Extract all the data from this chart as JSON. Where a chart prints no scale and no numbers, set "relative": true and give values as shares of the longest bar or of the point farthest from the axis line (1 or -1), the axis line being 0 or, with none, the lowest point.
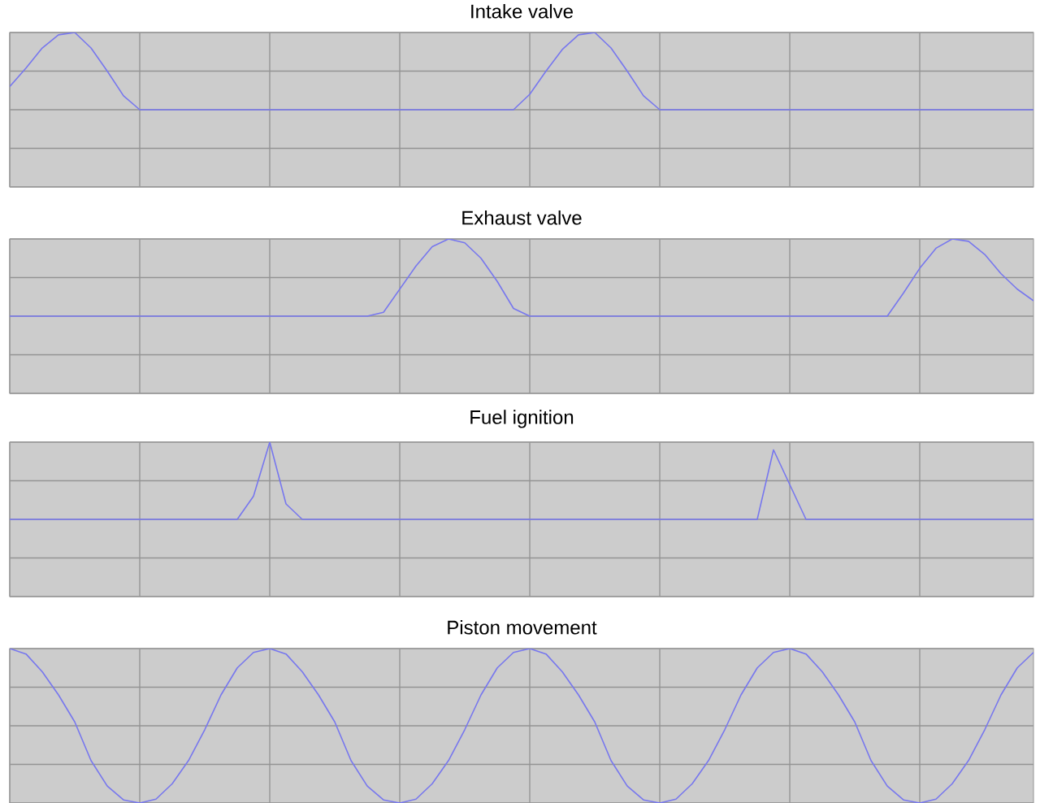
{
  "chart_data": [
    {
      "type": "line",
      "title": "Intake valve",
      "relative": true,
      "grid": true,
      "color": "#7777ee",
      "categories": [
        null,
        null,
        null,
        null,
        null,
        null,
        null,
        null,
        null,
        null,
        null,
        null,
        null,
        null,
        null,
        null,
        null,
        null,
        null,
        null,
        null,
        null,
        null,
        null,
        null,
        null,
        null,
        null,
        null,
        null,
        null,
        null,
        null,
        null,
        null,
        null,
        null,
        null,
        null,
        null,
        null,
        null,
        null,
        null,
        null,
        null,
        null,
        null,
        null,
        null,
        null,
        null,
        null,
        null,
        null,
        null,
        null,
        null,
        null,
        null,
        null,
        null,
        null,
        null
      ],
      "values": [
        0.3,
        0.54,
        0.8,
        0.97,
        1,
        0.8,
        0.5,
        0.18,
        0,
        0,
        0,
        0,
        0,
        0,
        0,
        0,
        0,
        0,
        0,
        0,
        0,
        0,
        0,
        0,
        0,
        0,
        0,
        0,
        0,
        0,
        0,
        0,
        0.2,
        0.5,
        0.78,
        0.97,
        1,
        0.8,
        0.5,
        0.18,
        0,
        0,
        0,
        0,
        0,
        0,
        0,
        0,
        0,
        0,
        0,
        0,
        0,
        0,
        0,
        0,
        0,
        0,
        0,
        0,
        0,
        0,
        0,
        0
      ]
    },
    {
      "type": "line",
      "title": "Exhaust valve",
      "relative": true,
      "grid": true,
      "color": "#7777ee",
      "categories": [
        null,
        null,
        null,
        null,
        null,
        null,
        null,
        null,
        null,
        null,
        null,
        null,
        null,
        null,
        null,
        null,
        null,
        null,
        null,
        null,
        null,
        null,
        null,
        null,
        null,
        null,
        null,
        null,
        null,
        null,
        null,
        null,
        null,
        null,
        null,
        null,
        null,
        null,
        null,
        null,
        null,
        null,
        null,
        null,
        null,
        null,
        null,
        null,
        null,
        null,
        null,
        null,
        null,
        null,
        null,
        null,
        null,
        null,
        null,
        null,
        null,
        null,
        null,
        null
      ],
      "values": [
        0,
        0,
        0,
        0,
        0,
        0,
        0,
        0,
        0,
        0,
        0,
        0,
        0,
        0,
        0,
        0,
        0,
        0,
        0,
        0,
        0,
        0,
        0,
        0.05,
        0.35,
        0.65,
        0.9,
        1,
        0.95,
        0.75,
        0.45,
        0.1,
        0,
        0,
        0,
        0,
        0,
        0,
        0,
        0,
        0,
        0,
        0,
        0,
        0,
        0,
        0,
        0,
        0,
        0,
        0,
        0,
        0,
        0,
        0,
        0.3,
        0.62,
        0.88,
        1,
        0.97,
        0.8,
        0.55,
        0.35,
        0.2
      ]
    },
    {
      "type": "line",
      "title": "Fuel ignition",
      "relative": true,
      "grid": true,
      "color": "#7777ee",
      "categories": [
        null,
        null,
        null,
        null,
        null,
        null,
        null,
        null,
        null,
        null,
        null,
        null,
        null,
        null,
        null,
        null,
        null,
        null,
        null,
        null,
        null,
        null,
        null,
        null,
        null,
        null,
        null,
        null,
        null,
        null,
        null,
        null,
        null,
        null,
        null,
        null,
        null,
        null,
        null,
        null,
        null,
        null,
        null,
        null,
        null,
        null,
        null,
        null,
        null,
        null,
        null,
        null,
        null,
        null,
        null,
        null,
        null,
        null,
        null,
        null,
        null,
        null,
        null,
        null
      ],
      "values": [
        0,
        0,
        0,
        0,
        0,
        0,
        0,
        0,
        0,
        0,
        0,
        0,
        0,
        0,
        0,
        0.3,
        1,
        0.2,
        0,
        0,
        0,
        0,
        0,
        0,
        0,
        0,
        0,
        0,
        0,
        0,
        0,
        0,
        0,
        0,
        0,
        0,
        0,
        0,
        0,
        0,
        0,
        0,
        0,
        0,
        0,
        0,
        0,
        0.9,
        0.45,
        0,
        0,
        0,
        0,
        0,
        0,
        0,
        0,
        0,
        0,
        0,
        0,
        0,
        0,
        0
      ]
    },
    {
      "type": "line",
      "title": "Piston movement",
      "relative": true,
      "grid": true,
      "color": "#7777ee",
      "categories": [
        null,
        null,
        null,
        null,
        null,
        null,
        null,
        null,
        null,
        null,
        null,
        null,
        null,
        null,
        null,
        null,
        null,
        null,
        null,
        null,
        null,
        null,
        null,
        null,
        null,
        null,
        null,
        null,
        null,
        null,
        null,
        null,
        null,
        null,
        null,
        null,
        null,
        null,
        null,
        null,
        null,
        null,
        null,
        null,
        null,
        null,
        null,
        null,
        null,
        null,
        null,
        null,
        null,
        null,
        null,
        null,
        null,
        null,
        null,
        null,
        null,
        null,
        null,
        null
      ],
      "values": [
        1,
        0.93,
        0.7,
        0.4,
        0.05,
        -0.45,
        -0.78,
        -0.96,
        -1,
        -0.95,
        -0.75,
        -0.45,
        -0.05,
        0.4,
        0.75,
        0.95,
        1,
        0.93,
        0.7,
        0.4,
        0.05,
        -0.45,
        -0.78,
        -0.96,
        -1,
        -0.95,
        -0.75,
        -0.45,
        -0.05,
        0.4,
        0.75,
        0.95,
        1,
        0.93,
        0.7,
        0.4,
        0.05,
        -0.45,
        -0.78,
        -0.96,
        -1,
        -0.95,
        -0.75,
        -0.45,
        -0.05,
        0.4,
        0.75,
        0.95,
        1,
        0.93,
        0.7,
        0.4,
        0.05,
        -0.45,
        -0.78,
        -0.96,
        -1,
        -0.95,
        -0.75,
        -0.45,
        -0.05,
        0.4,
        0.75,
        0.95
      ]
    }
  ]
}
